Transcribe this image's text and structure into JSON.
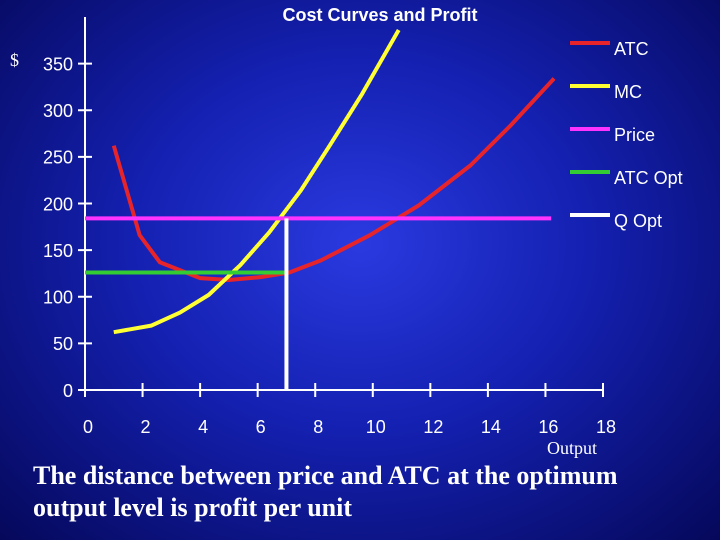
{
  "chart_data": {
    "type": "line",
    "title": "Cost Curves and Profit",
    "ylabel": "$",
    "xlabel": "Output",
    "xlim": [
      0,
      18
    ],
    "xticks": [
      0,
      2,
      4,
      6,
      8,
      10,
      12,
      14,
      16,
      18
    ],
    "ylim": [
      0,
      400
    ],
    "yticks": [
      0,
      50,
      100,
      150,
      200,
      250,
      300,
      350
    ],
    "legend": "upper right",
    "series": [
      {
        "name": "ATC",
        "color": "#e8242b",
        "x": [
          1.0,
          1.9,
          2.6,
          4.0,
          5.0,
          6.1,
          7.1,
          8.2,
          9.9,
          11.6,
          13.4,
          14.8,
          16.3
        ],
        "values": [
          262,
          166,
          137,
          120,
          118,
          121,
          126,
          139,
          166,
          198,
          241,
          284,
          334
        ]
      },
      {
        "name": "MC",
        "color": "#ffff33",
        "x": [
          1.0,
          2.3,
          3.3,
          4.3,
          5.4,
          6.4,
          7.5,
          8.5,
          9.6,
          10.9
        ],
        "values": [
          62,
          69,
          83,
          102,
          134,
          169,
          214,
          262,
          316,
          386
        ]
      },
      {
        "name": "Price",
        "color": "#ff33ff",
        "x": [
          0,
          16.2
        ],
        "values": [
          184,
          184
        ]
      },
      {
        "name": "ATC Opt",
        "color": "#33cc33",
        "x": [
          0,
          7.0
        ],
        "values": [
          126,
          126
        ]
      },
      {
        "name": "Q Opt",
        "color": "#ffffff",
        "x": [
          7.0,
          7.0
        ],
        "values": [
          0,
          184
        ]
      }
    ],
    "caption": "The distance between price and ATC at the optimum output level is profit per unit"
  }
}
